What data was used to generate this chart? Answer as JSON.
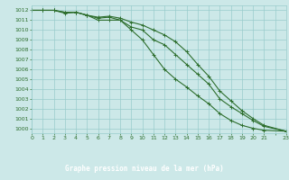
{
  "title": "Graphe pression niveau de la mer (hPa)",
  "background_color": "#cce8e8",
  "grid_color": "#99cccc",
  "line_color": "#2d6e2d",
  "marker_color": "#2d6e2d",
  "label_bg_color": "#3a7a3a",
  "label_text_color": "#ffffff",
  "xlim": [
    0,
    23
  ],
  "ylim": [
    999.5,
    1012.5
  ],
  "xtick_labels": [
    "0",
    "1",
    "2",
    "3",
    "4",
    "5",
    "6",
    "7",
    "8",
    "9",
    "10",
    "11",
    "12",
    "13",
    "14",
    "15",
    "16",
    "17",
    "18",
    "19",
    "20",
    "21",
    "",
    "23"
  ],
  "yticks": [
    1000,
    1001,
    1002,
    1003,
    1004,
    1005,
    1006,
    1007,
    1008,
    1009,
    1010,
    1011,
    1012
  ],
  "curve1_x": [
    0,
    1,
    2,
    3,
    4,
    5,
    6,
    7,
    8,
    9,
    10,
    11,
    12,
    13,
    14,
    15,
    16,
    17,
    18,
    19,
    20,
    21,
    23
  ],
  "curve1_y": [
    1012.0,
    1012.0,
    1012.0,
    1011.8,
    1011.8,
    1011.5,
    1011.2,
    1011.3,
    1011.0,
    1010.3,
    1010.0,
    1009.0,
    1008.5,
    1007.5,
    1006.5,
    1005.5,
    1004.5,
    1003.0,
    1002.2,
    1001.5,
    1000.8,
    1000.2,
    999.7
  ],
  "curve2_x": [
    0,
    1,
    2,
    3,
    4,
    5,
    6,
    7,
    8,
    9,
    10,
    11,
    12,
    13,
    14,
    15,
    16,
    17,
    18,
    19,
    20,
    21,
    23
  ],
  "curve2_y": [
    1012.0,
    1012.0,
    1012.0,
    1011.8,
    1011.8,
    1011.5,
    1011.3,
    1011.4,
    1011.2,
    1010.8,
    1010.5,
    1010.0,
    1009.5,
    1008.8,
    1007.8,
    1006.5,
    1005.3,
    1003.8,
    1002.8,
    1001.8,
    1001.0,
    1000.3,
    999.7
  ],
  "curve3_x": [
    0,
    1,
    2,
    3,
    4,
    5,
    6,
    7,
    8,
    9,
    10,
    11,
    12,
    13,
    14,
    15,
    16,
    17,
    18,
    19,
    20,
    21,
    23
  ],
  "curve3_y": [
    1012.0,
    1012.0,
    1012.0,
    1011.7,
    1011.8,
    1011.5,
    1011.0,
    1011.0,
    1011.0,
    1010.0,
    1009.0,
    1007.5,
    1006.0,
    1005.0,
    1004.2,
    1003.3,
    1002.5,
    1001.5,
    1000.8,
    1000.3,
    1000.0,
    999.8,
    999.7
  ]
}
